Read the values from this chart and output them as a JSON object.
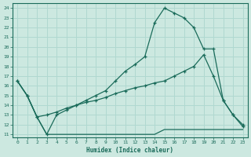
{
  "xlabel": "Humidex (Indice chaleur)",
  "xlim": [
    -0.5,
    23.5
  ],
  "ylim": [
    10.7,
    24.5
  ],
  "yticks": [
    11,
    12,
    13,
    14,
    15,
    16,
    17,
    18,
    19,
    20,
    21,
    22,
    23,
    24
  ],
  "xticks": [
    0,
    1,
    2,
    3,
    4,
    5,
    6,
    7,
    8,
    9,
    10,
    11,
    12,
    13,
    14,
    15,
    16,
    17,
    18,
    19,
    20,
    21,
    22,
    23
  ],
  "bg_color": "#cce8e0",
  "line_color": "#1a6b5a",
  "grid_color": "#b0d8d0",
  "line1_x": [
    0,
    1,
    2,
    3,
    4,
    5,
    6,
    7,
    8,
    9,
    10,
    11,
    12,
    13,
    14,
    15,
    16,
    17,
    18,
    19,
    20,
    21,
    22,
    23
  ],
  "line1_y": [
    16.5,
    15.0,
    12.8,
    11.0,
    11.0,
    11.0,
    11.0,
    11.0,
    11.0,
    11.0,
    11.0,
    11.0,
    11.0,
    11.0,
    11.0,
    11.5,
    11.5,
    11.5,
    11.5,
    11.5,
    11.5,
    11.5,
    11.5,
    11.5
  ],
  "line2_x": [
    0,
    1,
    2,
    3,
    4,
    5,
    6,
    7,
    8,
    9,
    10,
    11,
    12,
    13,
    14,
    15,
    16,
    17,
    18,
    19,
    20,
    21,
    22,
    23
  ],
  "line2_y": [
    16.5,
    15.0,
    12.8,
    13.0,
    13.3,
    13.7,
    14.0,
    14.3,
    14.5,
    14.8,
    15.2,
    15.5,
    15.8,
    16.0,
    16.3,
    16.5,
    17.0,
    17.5,
    18.0,
    19.2,
    17.0,
    14.5,
    13.0,
    12.0
  ],
  "line3_x": [
    0,
    1,
    2,
    3,
    4,
    5,
    6,
    7,
    8,
    9,
    10,
    11,
    12,
    13,
    14,
    15,
    16,
    17,
    18,
    19,
    20,
    21,
    22,
    23
  ],
  "line3_y": [
    16.5,
    15.0,
    12.8,
    11.0,
    13.0,
    13.5,
    14.0,
    14.5,
    15.0,
    15.5,
    16.5,
    17.5,
    18.2,
    19.0,
    22.5,
    24.0,
    23.5,
    23.0,
    22.0,
    19.8,
    19.8,
    14.5,
    13.0,
    11.8
  ]
}
